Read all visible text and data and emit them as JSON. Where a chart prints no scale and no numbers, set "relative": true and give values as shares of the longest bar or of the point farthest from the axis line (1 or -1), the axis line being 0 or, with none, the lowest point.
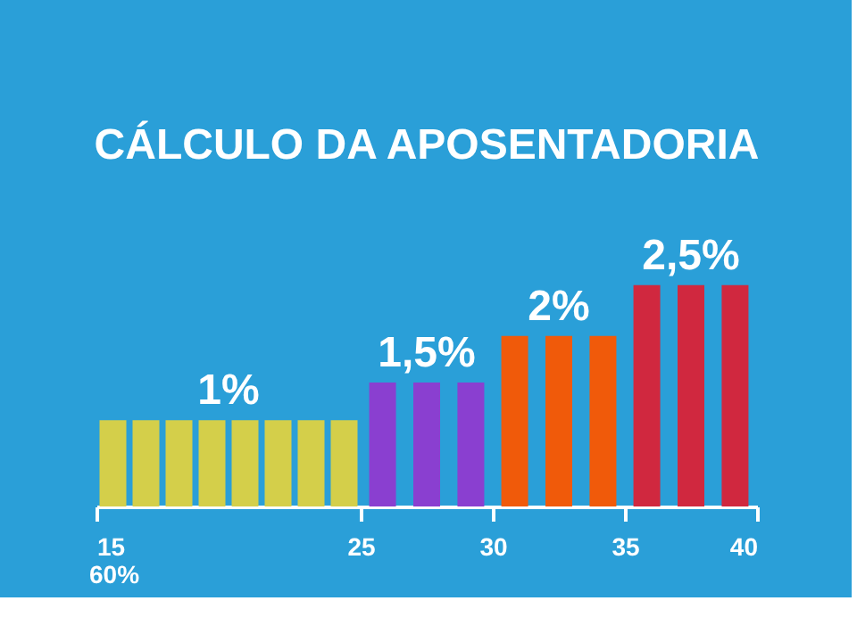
{
  "chart_data": {
    "type": "bar",
    "title": "CÁLCULO DA APOSENTADORIA",
    "relative": true,
    "xlim": [
      15,
      40
    ],
    "xticks": [
      15,
      25,
      30,
      35,
      40
    ],
    "grid": false,
    "legend": false,
    "series": [
      {
        "color": "#d4cf4a",
        "x": [
          15.625,
          16.875,
          18.125,
          19.375,
          20.625,
          21.875,
          23.125,
          24.375
        ],
        "values": [
          0.39,
          0.39,
          0.39,
          0.39,
          0.39,
          0.39,
          0.39,
          0.39
        ]
      },
      {
        "color": "#8a3fd0",
        "x": [
          25.83,
          27.5,
          29.17
        ],
        "values": [
          0.56,
          0.56,
          0.56
        ]
      },
      {
        "color": "#f05a0a",
        "x": [
          30.83,
          32.5,
          34.17
        ],
        "values": [
          0.77,
          0.77,
          0.77
        ]
      },
      {
        "color": "#d0283f",
        "x": [
          35.83,
          37.5,
          39.17
        ],
        "values": [
          1,
          1,
          1
        ]
      }
    ],
    "annotations": [
      {
        "text": "1%",
        "x": 20,
        "y": 0.39
      },
      {
        "text": "1,5%",
        "x": 27.5,
        "y": 0.56
      },
      {
        "text": "2%",
        "x": 32.5,
        "y": 0.77
      },
      {
        "text": "2,5%",
        "x": 37.5,
        "y": 1
      },
      "60%"
    ]
  }
}
